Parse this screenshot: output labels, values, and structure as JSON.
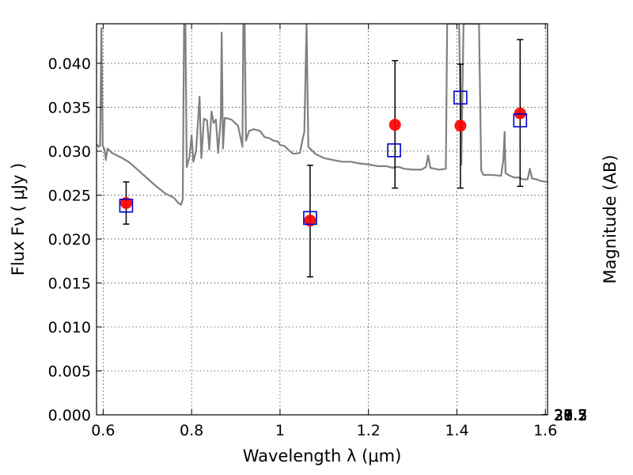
{
  "chart_data": {
    "type": "scatter",
    "xlabel": "Wavelength  λ (μm)",
    "ylabel_left": "Flux  Fν  ( μJy )",
    "ylabel_right": "Magnitude (AB)",
    "xlim": [
      0.585,
      1.605
    ],
    "ylim": [
      0.0,
      0.0445
    ],
    "grid": true,
    "x_ticks": [
      {
        "value": 0.6,
        "label": "0.6"
      },
      {
        "value": 0.8,
        "label": "0.8"
      },
      {
        "value": 1.0,
        "label": "1"
      },
      {
        "value": 1.2,
        "label": "1.2"
      },
      {
        "value": 1.4,
        "label": "1.4"
      },
      {
        "value": 1.6,
        "label": "1.6"
      }
    ],
    "y_ticks": [
      {
        "value": 0.0,
        "label": "0.000"
      },
      {
        "value": 0.005,
        "label": "0.005"
      },
      {
        "value": 0.01,
        "label": "0.010"
      },
      {
        "value": 0.015,
        "label": "0.015"
      },
      {
        "value": 0.02,
        "label": "0.020"
      },
      {
        "value": 0.025,
        "label": "0.025"
      },
      {
        "value": 0.03,
        "label": "0.030"
      },
      {
        "value": 0.035,
        "label": "0.035"
      },
      {
        "value": 0.04,
        "label": "0.040"
      }
    ],
    "right_ticks": [
      {
        "label": "27.3",
        "mag": 27.3
      },
      {
        "label": "27.5",
        "mag": 27.5
      },
      {
        "label": "27.7",
        "mag": 27.7
      },
      {
        "label": "28",
        "mag": 28.0
      },
      {
        "label": "28.2",
        "mag": 28.2
      },
      {
        "label": "28.5",
        "mag": 28.5
      },
      {
        "label": "29",
        "mag": 29.0
      },
      {
        "label": "29.5",
        "mag": 29.5
      },
      {
        "label": "30",
        "mag": 30.0
      },
      {
        "label": "31",
        "mag": 31.0
      }
    ],
    "series": [
      {
        "kind": "model spectrum",
        "color": "#808080",
        "points": [
          [
            0.585,
            0.0308
          ],
          [
            0.59,
            0.0305
          ],
          [
            0.593,
            0.0306
          ],
          [
            0.596,
            0.044
          ],
          [
            0.599,
            0.0306
          ],
          [
            0.603,
            0.0302
          ],
          [
            0.606,
            0.029
          ],
          [
            0.61,
            0.0303
          ],
          [
            0.62,
            0.0298
          ],
          [
            0.64,
            0.0293
          ],
          [
            0.66,
            0.0287
          ],
          [
            0.68,
            0.0278
          ],
          [
            0.7,
            0.0269
          ],
          [
            0.72,
            0.026
          ],
          [
            0.74,
            0.0252
          ],
          [
            0.76,
            0.0247
          ],
          [
            0.77,
            0.0241
          ],
          [
            0.776,
            0.0239
          ],
          [
            0.78,
            0.0245
          ],
          [
            0.783,
            0.0445
          ],
          [
            0.786,
            0.0445
          ],
          [
            0.789,
            0.0282
          ],
          [
            0.795,
            0.0293
          ],
          [
            0.8,
            0.0318
          ],
          [
            0.804,
            0.0288
          ],
          [
            0.81,
            0.03
          ],
          [
            0.815,
            0.0338
          ],
          [
            0.818,
            0.0362
          ],
          [
            0.822,
            0.0292
          ],
          [
            0.828,
            0.0337
          ],
          [
            0.835,
            0.0335
          ],
          [
            0.84,
            0.0302
          ],
          [
            0.845,
            0.0345
          ],
          [
            0.85,
            0.0332
          ],
          [
            0.855,
            0.0336
          ],
          [
            0.86,
            0.0298
          ],
          [
            0.866,
            0.0338
          ],
          [
            0.868,
            0.0435
          ],
          [
            0.871,
            0.0303
          ],
          [
            0.875,
            0.0338
          ],
          [
            0.89,
            0.0336
          ],
          [
            0.905,
            0.0329
          ],
          [
            0.915,
            0.0305
          ],
          [
            0.917,
            0.0445
          ],
          [
            0.92,
            0.0445
          ],
          [
            0.923,
            0.0312
          ],
          [
            0.93,
            0.0323
          ],
          [
            0.94,
            0.0325
          ],
          [
            0.955,
            0.0323
          ],
          [
            0.965,
            0.0316
          ],
          [
            0.975,
            0.0315
          ],
          [
            0.985,
            0.0312
          ],
          [
            0.995,
            0.0311
          ],
          [
            1.0,
            0.0307
          ],
          [
            1.01,
            0.0306
          ],
          [
            1.02,
            0.0301
          ],
          [
            1.03,
            0.0297
          ],
          [
            1.045,
            0.0298
          ],
          [
            1.05,
            0.0311
          ],
          [
            1.055,
            0.0322
          ],
          [
            1.06,
            0.0445
          ],
          [
            1.064,
            0.0305
          ],
          [
            1.08,
            0.0297
          ],
          [
            1.1,
            0.0292
          ],
          [
            1.12,
            0.029
          ],
          [
            1.14,
            0.0288
          ],
          [
            1.16,
            0.0288
          ],
          [
            1.18,
            0.0286
          ],
          [
            1.2,
            0.0285
          ],
          [
            1.22,
            0.0283
          ],
          [
            1.24,
            0.0283
          ],
          [
            1.255,
            0.0281
          ],
          [
            1.26,
            0.0282
          ],
          [
            1.27,
            0.0282
          ],
          [
            1.28,
            0.028
          ],
          [
            1.3,
            0.0279
          ],
          [
            1.32,
            0.0279
          ],
          [
            1.33,
            0.0282
          ],
          [
            1.335,
            0.0295
          ],
          [
            1.34,
            0.0281
          ],
          [
            1.36,
            0.0279
          ],
          [
            1.375,
            0.028
          ],
          [
            1.378,
            0.0445
          ],
          [
            1.385,
            0.0445
          ],
          [
            1.395,
            0.0445
          ],
          [
            1.405,
            0.0445
          ],
          [
            1.41,
            0.0285
          ],
          [
            1.415,
            0.0445
          ],
          [
            1.42,
            0.0445
          ],
          [
            1.425,
            0.0445
          ],
          [
            1.43,
            0.0445
          ],
          [
            1.44,
            0.0445
          ],
          [
            1.45,
            0.0445
          ],
          [
            1.455,
            0.0278
          ],
          [
            1.46,
            0.0273
          ],
          [
            1.48,
            0.0273
          ],
          [
            1.5,
            0.0272
          ],
          [
            1.505,
            0.029
          ],
          [
            1.508,
            0.0322
          ],
          [
            1.51,
            0.0275
          ],
          [
            1.52,
            0.0272
          ],
          [
            1.53,
            0.027
          ],
          [
            1.54,
            0.027
          ],
          [
            1.55,
            0.0268
          ],
          [
            1.56,
            0.0268
          ],
          [
            1.565,
            0.028
          ],
          [
            1.57,
            0.0269
          ],
          [
            1.58,
            0.0268
          ],
          [
            1.59,
            0.0266
          ],
          [
            1.605,
            0.0265
          ]
        ]
      },
      {
        "kind": "model photometry",
        "marker": "open square",
        "color": "#0000cc",
        "points": [
          [
            0.652,
            0.0238
          ],
          [
            1.068,
            0.0224
          ],
          [
            1.258,
            0.0301
          ],
          [
            1.408,
            0.0361
          ],
          [
            1.543,
            0.0335
          ]
        ]
      },
      {
        "kind": "observed photometry with error bars",
        "marker": "filled circle",
        "color": "#ff0000",
        "points": [
          {
            "x": 0.652,
            "y": 0.0241,
            "ylow": 0.0217,
            "yhigh": 0.0265
          },
          {
            "x": 1.068,
            "y": 0.0221,
            "ylow": 0.0157,
            "yhigh": 0.0284
          },
          {
            "x": 1.26,
            "y": 0.033,
            "ylow": 0.0258,
            "yhigh": 0.0403
          },
          {
            "x": 1.408,
            "y": 0.0329,
            "ylow": 0.0258,
            "yhigh": 0.0399
          },
          {
            "x": 1.543,
            "y": 0.0343,
            "ylow": 0.026,
            "yhigh": 0.0427
          }
        ]
      }
    ]
  }
}
